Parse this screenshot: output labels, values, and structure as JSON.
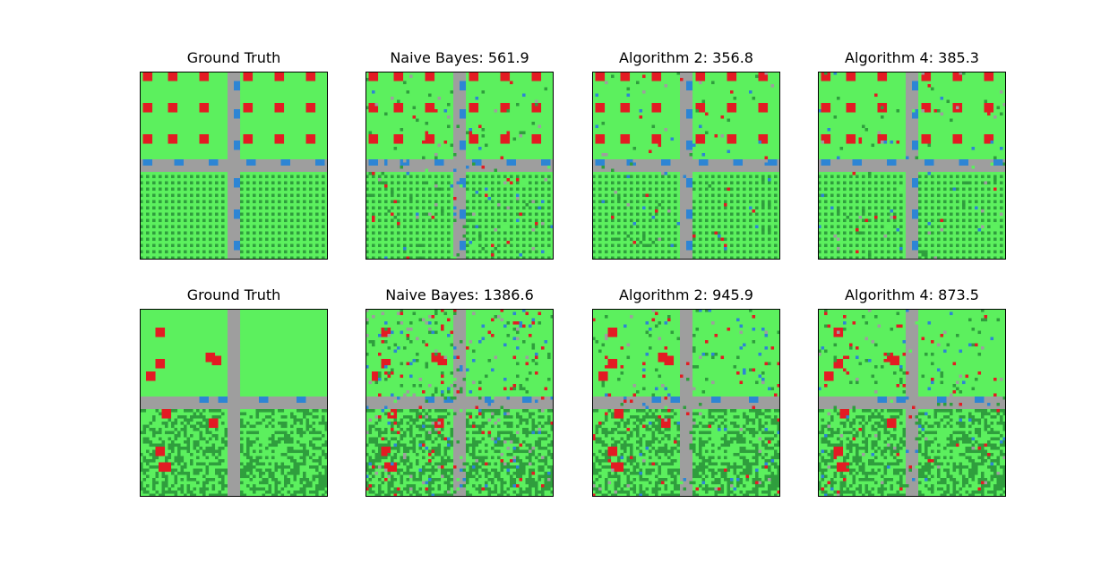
{
  "colors": {
    "grass": "#5cf05e",
    "dark_green": "#2f9e3d",
    "road": "#9e9e9e",
    "water": "#2d85d4",
    "building": "#e31b23"
  },
  "panels": [
    {
      "id": "r1c1",
      "title": "Ground Truth",
      "scene": "grid",
      "noise": 0
    },
    {
      "id": "r1c2",
      "title": "Naive Bayes: 561.9",
      "scene": "grid",
      "noise": 0.055
    },
    {
      "id": "r1c3",
      "title": "Algorithm 2: 356.8",
      "scene": "grid",
      "noise": 0.03
    },
    {
      "id": "r1c4",
      "title": "Algorithm 4: 385.3",
      "scene": "grid",
      "noise": 0.033
    },
    {
      "id": "r2c1",
      "title": "Ground Truth",
      "scene": "scatter",
      "noise": 0
    },
    {
      "id": "r2c2",
      "title": "Naive Bayes: 1386.6",
      "scene": "scatter",
      "noise": 0.14
    },
    {
      "id": "r2c3",
      "title": "Algorithm 2: 945.9",
      "scene": "scatter",
      "noise": 0.085
    },
    {
      "id": "r2c4",
      "title": "Algorithm 4: 873.5",
      "scene": "scatter",
      "noise": 0.075
    }
  ]
}
